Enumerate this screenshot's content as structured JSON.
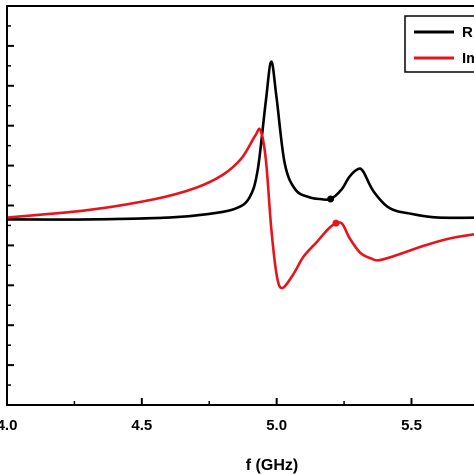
{
  "chart_data": {
    "type": "line",
    "xlabel": "f (GHz)",
    "xlim": [
      4.0,
      5.78
    ],
    "ylim": [
      -1.0,
      1.15
    ],
    "x_ticks": [
      "4.0",
      "4.5",
      "5.0",
      "5.5"
    ],
    "x_tick_values": [
      4.0,
      4.5,
      5.0,
      5.5
    ],
    "y_ticks_unlabeled": 20,
    "legend_position": "top-right (partially cropped)",
    "series": [
      {
        "name": "R",
        "color": "#000000",
        "x": [
          4.0,
          4.3,
          4.6,
          4.75,
          4.85,
          4.9,
          4.93,
          4.96,
          4.98,
          5.0,
          5.03,
          5.07,
          5.12,
          5.16,
          5.2,
          5.24,
          5.27,
          5.3,
          5.32,
          5.36,
          5.42,
          5.5,
          5.6,
          5.78
        ],
        "y": [
          0.0,
          0.0,
          0.01,
          0.03,
          0.06,
          0.12,
          0.27,
          0.64,
          0.85,
          0.65,
          0.3,
          0.16,
          0.12,
          0.11,
          0.11,
          0.16,
          0.23,
          0.27,
          0.26,
          0.15,
          0.06,
          0.03,
          0.01,
          0.01
        ]
      },
      {
        "name": "Im",
        "color": "#e8141b",
        "x": [
          4.0,
          4.3,
          4.55,
          4.7,
          4.8,
          4.87,
          4.92,
          4.94,
          4.96,
          4.98,
          5.0,
          5.02,
          5.06,
          5.1,
          5.15,
          5.2,
          5.24,
          5.27,
          5.31,
          5.35,
          5.38,
          5.45,
          5.55,
          5.65,
          5.78
        ],
        "y": [
          0.01,
          0.05,
          0.11,
          0.17,
          0.24,
          0.33,
          0.45,
          0.48,
          0.32,
          -0.05,
          -0.3,
          -0.37,
          -0.3,
          -0.2,
          -0.12,
          -0.04,
          -0.02,
          -0.1,
          -0.18,
          -0.21,
          -0.22,
          -0.19,
          -0.14,
          -0.1,
          -0.07
        ]
      }
    ],
    "markers": [
      {
        "series": "R",
        "x": 5.2,
        "y": 0.11
      },
      {
        "series": "Im",
        "x": 5.22,
        "y": -0.02
      }
    ]
  }
}
